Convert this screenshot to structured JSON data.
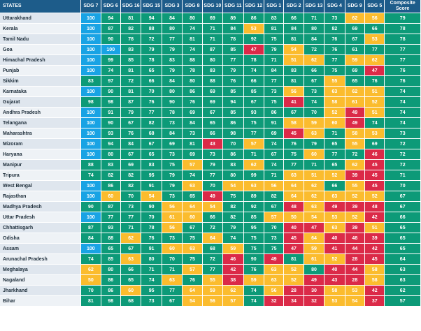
{
  "chart_data": {
    "type": "table",
    "columns": [
      "STATES",
      "SDG 7",
      "SDG 6",
      "SDG 16",
      "SDG 15",
      "SDG 3",
      "SDG 8",
      "SDG 10",
      "SDG 11",
      "SDG 12",
      "SDG 1",
      "SDG 2",
      "SDG 13",
      "SDG 4",
      "SDG 9",
      "SDG 5",
      "Composite Score"
    ],
    "colors": {
      "front_runner": "#18a3e4",
      "achiever": "#0d9a78",
      "performer": "#fbbc2e",
      "aspirant": "#db2a48",
      "header": "#1d5c8a",
      "state_odd": "#dfe6ee",
      "state_even": "#eef2f6"
    },
    "rows": [
      {
        "state": "Uttarakhand",
        "scores": [
          "100",
          "94",
          "81",
          "94",
          "84",
          "80",
          "69",
          "89",
          "86",
          "83",
          "66",
          "71",
          "73",
          "62",
          "56"
        ],
        "levels": "FAAAAAAAAAAAAPP",
        "composite": "79"
      },
      {
        "state": "Kerala",
        "scores": [
          "100",
          "87",
          "82",
          "88",
          "80",
          "74",
          "71",
          "84",
          "53",
          "81",
          "84",
          "80",
          "82",
          "69",
          "66"
        ],
        "levels": "FAAAAAAAPAAAAAA",
        "composite": "78"
      },
      {
        "state": "Tamil Nadu",
        "scores": [
          "100",
          "90",
          "78",
          "72",
          "77",
          "81",
          "71",
          "78",
          "92",
          "75",
          "81",
          "84",
          "76",
          "67",
          "53"
        ],
        "levels": "FAAAAAAAAAAAAAP",
        "composite": "78"
      },
      {
        "state": "Goa",
        "scores": [
          "100",
          "100",
          "83",
          "79",
          "79",
          "74",
          "87",
          "85",
          "47",
          "79",
          "54",
          "72",
          "76",
          "61",
          "77"
        ],
        "levels": "FFAAAAAAXAPAAAA",
        "composite": "77"
      },
      {
        "state": "Himachal Pradesh",
        "scores": [
          "100",
          "99",
          "85",
          "78",
          "83",
          "88",
          "80",
          "77",
          "78",
          "71",
          "51",
          "62",
          "77",
          "59",
          "62"
        ],
        "levels": "FAAAAAAAAAPPAPP",
        "composite": "77"
      },
      {
        "state": "Punjab",
        "scores": [
          "100",
          "74",
          "81",
          "65",
          "79",
          "78",
          "83",
          "79",
          "74",
          "84",
          "83",
          "66",
          "75",
          "69",
          "47"
        ],
        "levels": "FAAAAAAAAAAAAAX",
        "composite": "76"
      },
      {
        "state": "Sikkim",
        "scores": [
          "83",
          "97",
          "72",
          "66",
          "84",
          "80",
          "88",
          "76",
          "66",
          "77",
          "81",
          "67",
          "55",
          "65",
          "76"
        ],
        "levels": "AAAAAAAAAAAAPAA",
        "composite": "76"
      },
      {
        "state": "Karnataka",
        "scores": [
          "100",
          "90",
          "81",
          "70",
          "80",
          "86",
          "69",
          "85",
          "85",
          "73",
          "56",
          "73",
          "63",
          "62",
          "51"
        ],
        "levels": "FAAAAAAAAAPAPPP",
        "composite": "74"
      },
      {
        "state": "Gujarat",
        "scores": [
          "98",
          "98",
          "87",
          "76",
          "90",
          "76",
          "69",
          "94",
          "67",
          "75",
          "41",
          "74",
          "58",
          "61",
          "52"
        ],
        "levels": "AAAAAAAAAAXAPPP",
        "composite": "74"
      },
      {
        "state": "Andhra Pradesh",
        "scores": [
          "100",
          "91",
          "79",
          "77",
          "78",
          "69",
          "67",
          "85",
          "93",
          "86",
          "67",
          "70",
          "52",
          "49",
          "51"
        ],
        "levels": "FAAAAAAAAAAAPXP",
        "composite": "74"
      },
      {
        "state": "Telangana",
        "scores": [
          "100",
          "90",
          "67",
          "82",
          "73",
          "84",
          "65",
          "86",
          "75",
          "91",
          "58",
          "59",
          "60",
          "49",
          "74"
        ],
        "levels": "FAAAAAAAAAPPPXA",
        "composite": "74"
      },
      {
        "state": "Maharashtra",
        "scores": [
          "100",
          "93",
          "76",
          "68",
          "84",
          "73",
          "66",
          "98",
          "77",
          "69",
          "45",
          "63",
          "71",
          "58",
          "53"
        ],
        "levels": "FAAAAAAAAAXPAPP",
        "composite": "73"
      },
      {
        "state": "Mizoram",
        "scores": [
          "100",
          "94",
          "84",
          "67",
          "69",
          "81",
          "43",
          "70",
          "57",
          "74",
          "76",
          "79",
          "65",
          "55",
          "69"
        ],
        "levels": "FAAAAAXAPAAAAPA",
        "composite": "72"
      },
      {
        "state": "Haryana",
        "scores": [
          "100",
          "80",
          "67",
          "65",
          "73",
          "69",
          "73",
          "86",
          "71",
          "67",
          "75",
          "60",
          "77",
          "72",
          "46"
        ],
        "levels": "FAAAAAAAAAAPAAX",
        "composite": "72"
      },
      {
        "state": "Manipur",
        "scores": [
          "88",
          "83",
          "69",
          "83",
          "75",
          "57",
          "79",
          "83",
          "62",
          "74",
          "77",
          "71",
          "65",
          "62",
          "45"
        ],
        "levels": "AAAAAPAAPAAAAPX",
        "composite": "72"
      },
      {
        "state": "Tripura",
        "scores": [
          "74",
          "82",
          "82",
          "95",
          "79",
          "74",
          "77",
          "80",
          "99",
          "71",
          "63",
          "51",
          "52",
          "39",
          "45"
        ],
        "levels": "AAAAAAAAAAPPPXX",
        "composite": "71"
      },
      {
        "state": "West Bengal",
        "scores": [
          "100",
          "86",
          "82",
          "91",
          "79",
          "63",
          "70",
          "54",
          "63",
          "56",
          "64",
          "62",
          "66",
          "55",
          "45"
        ],
        "levels": "FAAAAPAPPPPPAPX",
        "composite": "70"
      },
      {
        "state": "Rajasthan",
        "scores": [
          "100",
          "60",
          "70",
          "54",
          "73",
          "65",
          "49",
          "75",
          "89",
          "82",
          "64",
          "62",
          "63",
          "52",
          "52"
        ],
        "levels": "FPAPAAXAAAPPPPP",
        "composite": "67"
      },
      {
        "state": "Madhya Pradesh",
        "scores": [
          "90",
          "87",
          "73",
          "90",
          "56",
          "64",
          "54",
          "82",
          "92",
          "67",
          "48",
          "63",
          "49",
          "39",
          "48"
        ],
        "levels": "AAAAPPPAAAXPXXX",
        "composite": "67"
      },
      {
        "state": "Uttar Pradesh",
        "scores": [
          "100",
          "77",
          "77",
          "70",
          "61",
          "60",
          "66",
          "82",
          "85",
          "57",
          "50",
          "54",
          "53",
          "52",
          "42"
        ],
        "levels": "FAAAPPAAAPPPPPX",
        "composite": "66"
      },
      {
        "state": "Chhattisgarh",
        "scores": [
          "87",
          "93",
          "71",
          "78",
          "56",
          "67",
          "72",
          "79",
          "95",
          "70",
          "40",
          "47",
          "63",
          "39",
          "51"
        ],
        "levels": "AAAAPAAAAAXXPXP",
        "composite": "65"
      },
      {
        "state": "Odisha",
        "scores": [
          "84",
          "88",
          "62",
          "76",
          "73",
          "75",
          "64",
          "74",
          "75",
          "73",
          "45",
          "64",
          "40",
          "48",
          "39"
        ],
        "levels": "AAPAAAPAAAXPXXX",
        "composite": "65"
      },
      {
        "state": "Assam",
        "scores": [
          "100",
          "65",
          "67",
          "91",
          "60",
          "63",
          "68",
          "59",
          "75",
          "75",
          "47",
          "59",
          "41",
          "44",
          "42"
        ],
        "levels": "FAAAPPAPAAXPXXX",
        "composite": "65"
      },
      {
        "state": "Arunachal Pradesh",
        "scores": [
          "74",
          "85",
          "63",
          "80",
          "70",
          "75",
          "72",
          "46",
          "90",
          "49",
          "81",
          "61",
          "52",
          "28",
          "45"
        ],
        "levels": "AAPAAAAXAXAPPXX",
        "composite": "64"
      },
      {
        "state": "Meghalaya",
        "scores": [
          "62",
          "80",
          "66",
          "71",
          "71",
          "57",
          "77",
          "42",
          "76",
          "63",
          "52",
          "80",
          "40",
          "44",
          "58"
        ],
        "levels": "PAAAAPAXAPPAXXP",
        "composite": "63"
      },
      {
        "state": "Nagaland",
        "scores": [
          "50",
          "86",
          "65",
          "74",
          "63",
          "76",
          "55",
          "38",
          "59",
          "63",
          "52",
          "49",
          "43",
          "28",
          "58"
        ],
        "levels": "PAAAPAPXPPPXXXP",
        "composite": "63"
      },
      {
        "state": "Jharkhand",
        "scores": [
          "70",
          "86",
          "60",
          "95",
          "77",
          "64",
          "59",
          "62",
          "74",
          "56",
          "28",
          "30",
          "58",
          "53",
          "42"
        ],
        "levels": "AAPAAPPPAPXXPPX",
        "composite": "62"
      },
      {
        "state": "Bihar",
        "scores": [
          "81",
          "98",
          "68",
          "73",
          "67",
          "54",
          "56",
          "57",
          "74",
          "32",
          "34",
          "32",
          "53",
          "54",
          "37"
        ],
        "levels": "AAAAAPPPAXXXPPX",
        "composite": "57"
      }
    ]
  }
}
